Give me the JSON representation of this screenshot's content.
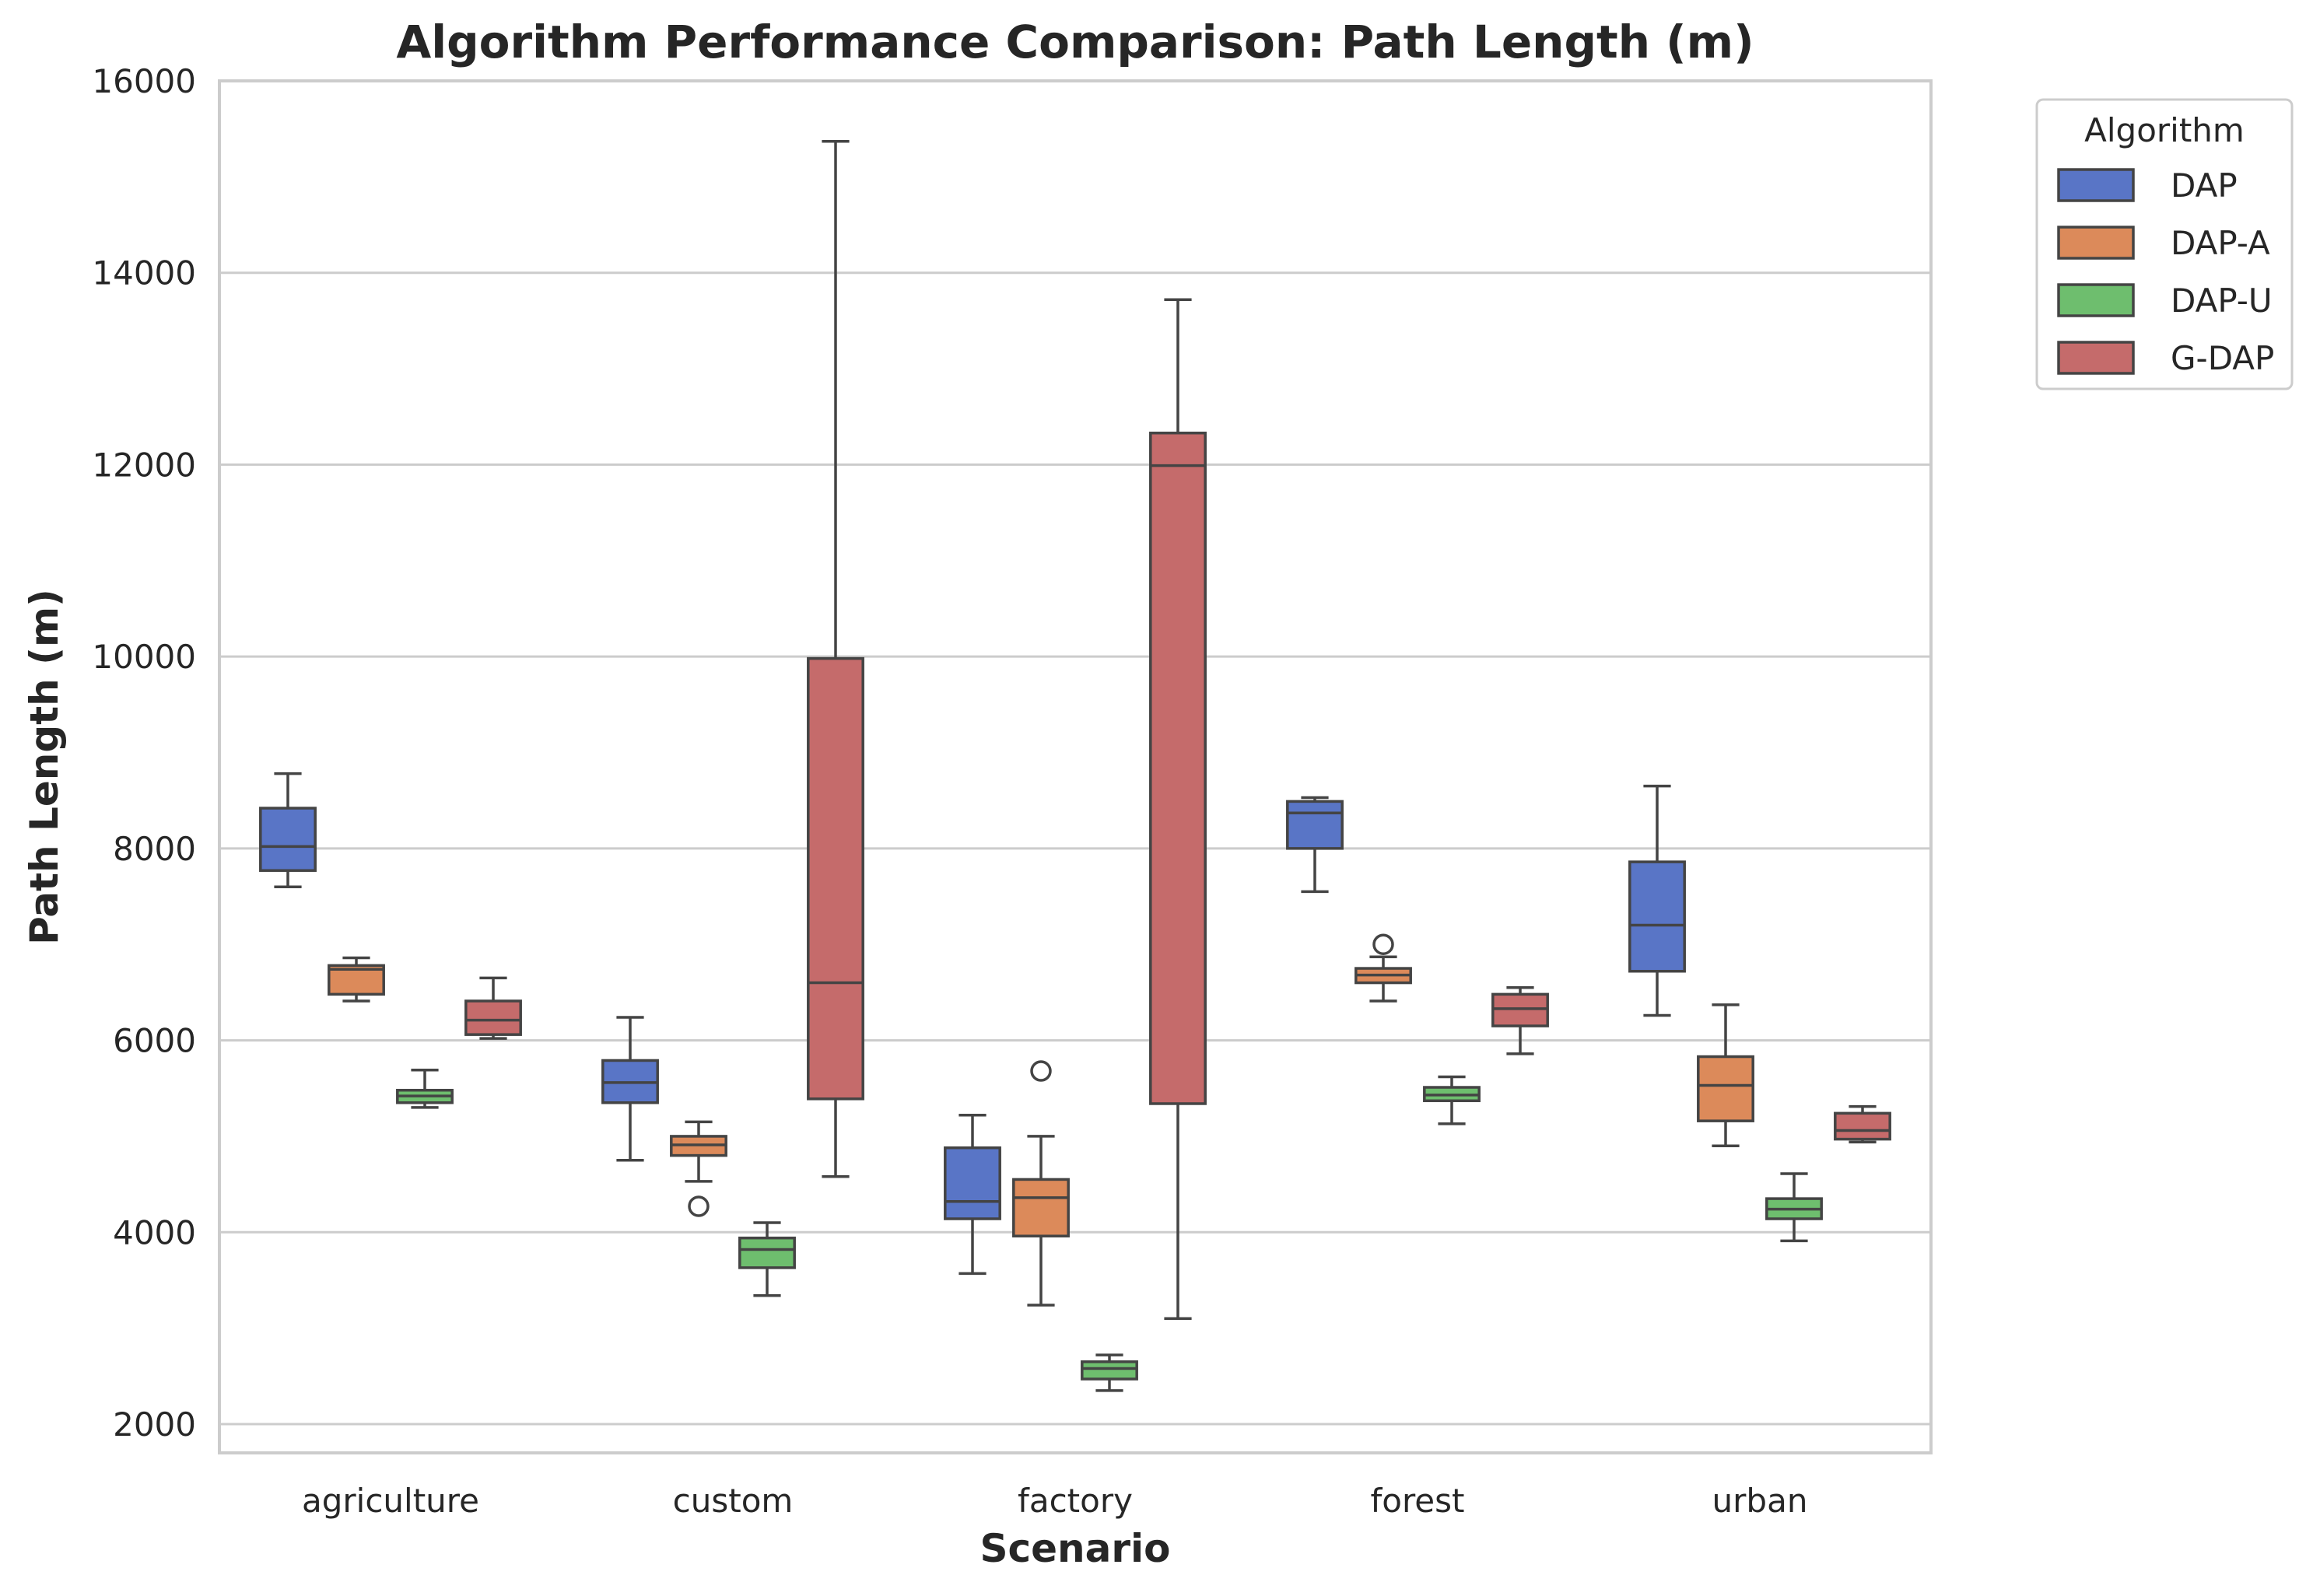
{
  "chart_data": {
    "type": "box",
    "title": "Algorithm Performance Comparison: Path Length (m)",
    "xlabel": "Scenario",
    "ylabel": "Path Length (m)",
    "ylim": [
      1700,
      16000
    ],
    "yticks": [
      2000,
      4000,
      6000,
      8000,
      10000,
      12000,
      14000,
      16000
    ],
    "grid": "horizontal",
    "legend_position": "outside-top-right",
    "legend_title": "Algorithm",
    "categories": [
      "agriculture",
      "custom",
      "factory",
      "forest",
      "urban"
    ],
    "series": [
      {
        "name": "DAP",
        "color": "#5975c6",
        "boxes": [
          {
            "whislo": 7600,
            "q1": 7770,
            "med": 8020,
            "q3": 8420,
            "whishi": 8780,
            "fliers": []
          },
          {
            "whislo": 4750,
            "q1": 5350,
            "med": 5560,
            "q3": 5790,
            "whishi": 6240,
            "fliers": []
          },
          {
            "whislo": 3570,
            "q1": 4140,
            "med": 4320,
            "q3": 4880,
            "whishi": 5220,
            "fliers": []
          },
          {
            "whislo": 7550,
            "q1": 8000,
            "med": 8370,
            "q3": 8490,
            "whishi": 8530,
            "fliers": []
          },
          {
            "whislo": 6260,
            "q1": 6720,
            "med": 7200,
            "q3": 7860,
            "whishi": 8650,
            "fliers": []
          }
        ]
      },
      {
        "name": "DAP-A",
        "color": "#dc8a5a",
        "boxes": [
          {
            "whislo": 6410,
            "q1": 6480,
            "med": 6740,
            "q3": 6780,
            "whishi": 6860,
            "fliers": []
          },
          {
            "whislo": 4530,
            "q1": 4800,
            "med": 4910,
            "q3": 5000,
            "whishi": 5150,
            "fliers": [
              4270
            ]
          },
          {
            "whislo": 3240,
            "q1": 3960,
            "med": 4360,
            "q3": 4550,
            "whishi": 5000,
            "fliers": [
              5680
            ]
          },
          {
            "whislo": 6410,
            "q1": 6600,
            "med": 6680,
            "q3": 6750,
            "whishi": 6870,
            "fliers": [
              7000
            ]
          },
          {
            "whislo": 4900,
            "q1": 5160,
            "med": 5530,
            "q3": 5830,
            "whishi": 6370,
            "fliers": []
          }
        ]
      },
      {
        "name": "DAP-U",
        "color": "#6ebe6e",
        "boxes": [
          {
            "whislo": 5300,
            "q1": 5350,
            "med": 5420,
            "q3": 5480,
            "whishi": 5690,
            "fliers": []
          },
          {
            "whislo": 3340,
            "q1": 3630,
            "med": 3820,
            "q3": 3940,
            "whishi": 4100,
            "fliers": []
          },
          {
            "whislo": 2350,
            "q1": 2470,
            "med": 2580,
            "q3": 2650,
            "whishi": 2720,
            "fliers": []
          },
          {
            "whislo": 5130,
            "q1": 5370,
            "med": 5430,
            "q3": 5510,
            "whishi": 5620,
            "fliers": []
          },
          {
            "whislo": 3910,
            "q1": 4140,
            "med": 4240,
            "q3": 4350,
            "whishi": 4610,
            "fliers": []
          }
        ]
      },
      {
        "name": "G-DAP",
        "color": "#c56b6b",
        "boxes": [
          {
            "whislo": 6020,
            "q1": 6060,
            "med": 6210,
            "q3": 6410,
            "whishi": 6650,
            "fliers": []
          },
          {
            "whislo": 4580,
            "q1": 5390,
            "med": 6600,
            "q3": 9980,
            "whishi": 15370,
            "fliers": []
          },
          {
            "whislo": 3100,
            "q1": 5340,
            "med": 11990,
            "q3": 12330,
            "whishi": 13720,
            "fliers": []
          },
          {
            "whislo": 5860,
            "q1": 6150,
            "med": 6330,
            "q3": 6480,
            "whishi": 6550,
            "fliers": []
          },
          {
            "whislo": 4940,
            "q1": 4970,
            "med": 5060,
            "q3": 5240,
            "whishi": 5310,
            "fliers": []
          }
        ]
      }
    ]
  }
}
